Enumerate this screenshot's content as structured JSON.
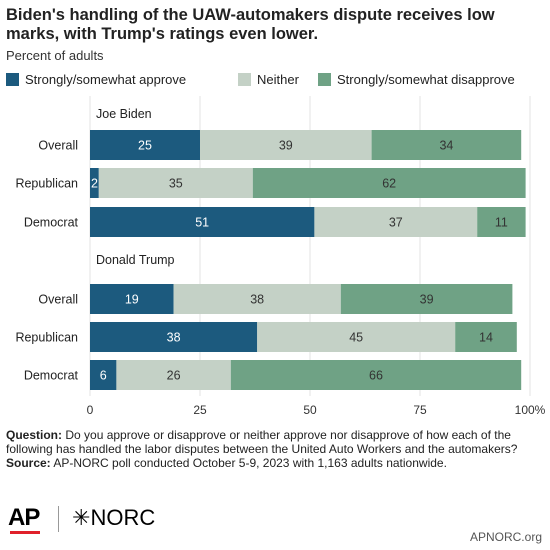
{
  "header": {
    "title": "Biden's handling of the UAW-automakers dispute receives low marks, with Trump's ratings even lower.",
    "subtitle": "Percent of adults"
  },
  "legend": [
    {
      "label": "Strongly/somewhat approve",
      "color": "#1c5a7e"
    },
    {
      "label": "Neither",
      "color": "#c4d1c6"
    },
    {
      "label": "Strongly/somewhat disapprove",
      "color": "#6fa285"
    }
  ],
  "chart_data": {
    "type": "bar",
    "orientation": "horizontal",
    "stacked": true,
    "xlim": [
      0,
      100
    ],
    "x_ticks": [
      "0",
      "25",
      "50",
      "75",
      "100%"
    ],
    "groups": [
      {
        "name": "Joe Biden",
        "categories": [
          "Overall",
          "Republican",
          "Democrat"
        ],
        "series": [
          {
            "name": "Strongly/somewhat approve",
            "values": [
              25,
              2,
              51
            ]
          },
          {
            "name": "Neither",
            "values": [
              39,
              35,
              37
            ]
          },
          {
            "name": "Strongly/somewhat disapprove",
            "values": [
              34,
              62,
              11
            ]
          }
        ]
      },
      {
        "name": "Donald Trump",
        "categories": [
          "Overall",
          "Republican",
          "Democrat"
        ],
        "series": [
          {
            "name": "Strongly/somewhat approve",
            "values": [
              19,
              38,
              6
            ]
          },
          {
            "name": "Neither",
            "values": [
              38,
              45,
              26
            ]
          },
          {
            "name": "Strongly/somewhat disapprove",
            "values": [
              39,
              14,
              66
            ]
          }
        ]
      }
    ],
    "grid": true
  },
  "footer": {
    "question_label": "Question:",
    "question_text": "Do you approve or disapprove or neither approve nor disapprove of how each of the following has handled the labor disputes between the United Auto Workers and the automakers?",
    "source_label": "Source:",
    "source_text": "AP-NORC poll conducted October 5-9, 2023 with 1,163 adults nationwide."
  },
  "logos": {
    "ap": "AP",
    "norc": "NORC"
  },
  "credit": "APNORC.org"
}
